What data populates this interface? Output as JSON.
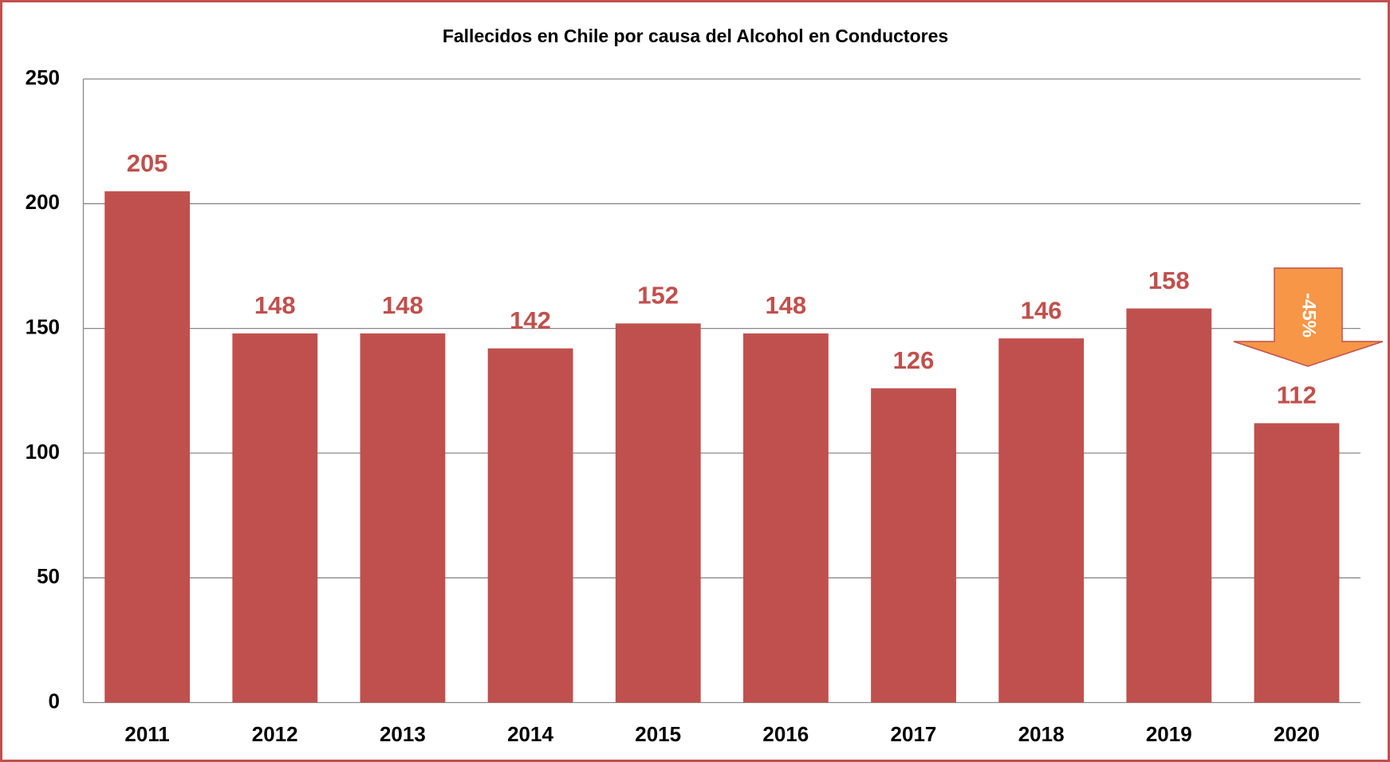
{
  "chart_data": {
    "type": "bar",
    "title": "Fallecidos en Chile por causa del Alcohol en Conductores",
    "categories": [
      "2011",
      "2012",
      "2013",
      "2014",
      "2015",
      "2016",
      "2017",
      "2018",
      "2019",
      "2020"
    ],
    "values": [
      205,
      148,
      148,
      142,
      152,
      148,
      126,
      146,
      158,
      112
    ],
    "color": "#c0504d",
    "ylim": [
      0,
      250
    ],
    "yticks": [
      0,
      50,
      100,
      150,
      200,
      250
    ],
    "grid": true,
    "annotation": "-45%"
  }
}
